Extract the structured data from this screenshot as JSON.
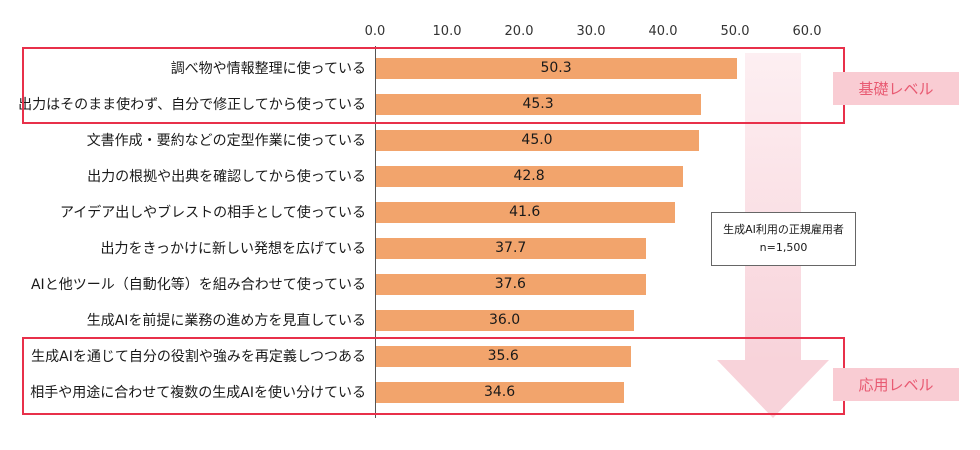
{
  "chart_data": {
    "type": "bar",
    "orientation": "horizontal",
    "title": "",
    "xlabel": "",
    "ylabel": "",
    "xlim": [
      0,
      60
    ],
    "x_ticks": [
      "0.0",
      "10.0",
      "20.0",
      "30.0",
      "40.0",
      "50.0",
      "60.0"
    ],
    "grid": false,
    "legend": false,
    "bar_color": "#F2A46C",
    "categories": [
      "調べ物や情報整理に使っている",
      "出力はそのまま使わず、自分で修正してから使っている",
      "文書作成・要約などの定型作業に使っている",
      "出力の根拠や出典を確認してから使っている",
      "アイデア出しやブレストの相手として使っている",
      "出力をきっかけに新しい発想を広げている",
      "AIと他ツール（自動化等）を組み合わせて使っている",
      "生成AIを前提に業務の進め方を見直している",
      "生成AIを通じて自分の役割や強みを再定義しつつある",
      "相手や用途に合わせて複数の生成AIを使い分けている"
    ],
    "values": [
      50.3,
      45.3,
      45.0,
      42.8,
      41.6,
      37.7,
      37.6,
      36.0,
      35.6,
      34.6
    ]
  },
  "annotations": {
    "sample_note_line1": "生成AI利用の正規雇用者",
    "sample_note_line2": "n=1,500",
    "basic_level_label": "基礎レベル",
    "applied_level_label": "応用レベル"
  },
  "colors": {
    "bar": "#F2A46C",
    "group_box_border": "#E8304A",
    "level_label_bg": "#F9CCD3",
    "level_label_text": "#E85A72",
    "arrow_pink": "#F8D3DA"
  }
}
